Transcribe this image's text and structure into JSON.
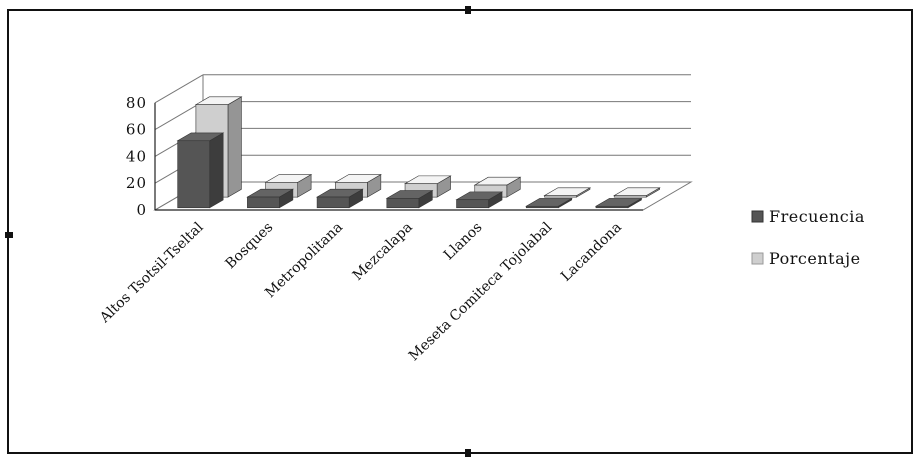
{
  "chart_data": {
    "type": "bar",
    "categories": [
      "Altos Tsotsil-Tseltal",
      "Bosques",
      "Metropolitana",
      "Mezcalapa",
      "Llanos",
      "Meseta Comiteca Tojolabal",
      "Lacandona"
    ],
    "series": [
      {
        "name": "Frecuencia",
        "values": [
          50,
          8,
          8,
          7,
          6,
          1,
          1
        ]
      },
      {
        "name": "Porcentaje",
        "values": [
          69,
          11,
          11,
          10,
          9,
          1,
          1
        ]
      }
    ],
    "yticks": [
      "0",
      "20",
      "40",
      "60",
      "80"
    ],
    "ylim": [
      0,
      80
    ],
    "grid": true,
    "legend_position": "right",
    "colors": {
      "Frecuencia": "#555555",
      "Porcentaje": "#cfcfcf",
      "grid": "#777777",
      "frame": "#111111"
    }
  }
}
